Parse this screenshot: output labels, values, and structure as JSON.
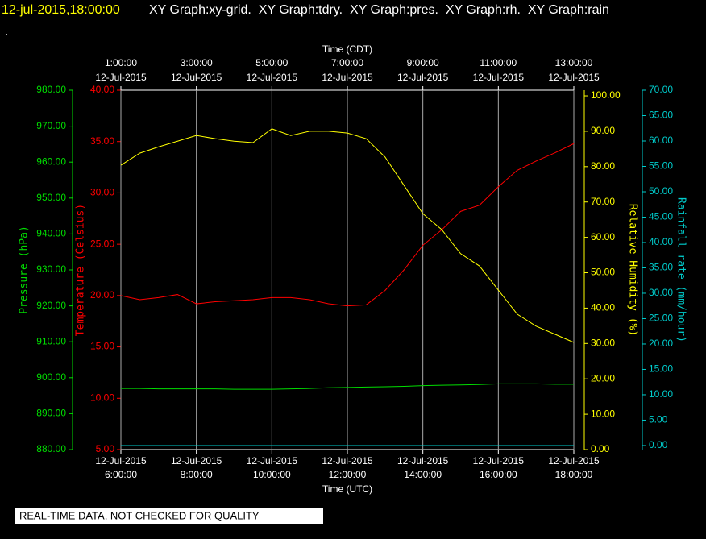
{
  "chart_data": {
    "type": "line",
    "header_time": "12-jul-2015,18:00:00",
    "header_text": "XY Graph:xy-grid.  XY Graph:tdry.  XY Graph:pres.  XY Graph:rh.  XY Graph:rain",
    "header_line2": ".",
    "footer": "REAL-TIME DATA, NOT CHECKED FOR QUALITY",
    "xlabel": "Time (UTC)",
    "x2label": "Time (CDT)",
    "ylabel": "Temperature (Celsius)",
    "y2label": "Relative Humidity (%)",
    "y3label": "Pressure (hPa)",
    "y4label": "Rainfall rate (mm/hour)",
    "grid": true,
    "x": [
      "2015-07-12T06:00:00",
      "2015-07-12T06:30:00",
      "2015-07-12T07:00:00",
      "2015-07-12T07:30:00",
      "2015-07-12T08:00:00",
      "2015-07-12T08:30:00",
      "2015-07-12T09:00:00",
      "2015-07-12T09:30:00",
      "2015-07-12T10:00:00",
      "2015-07-12T10:30:00",
      "2015-07-12T11:00:00",
      "2015-07-12T11:30:00",
      "2015-07-12T12:00:00",
      "2015-07-12T12:30:00",
      "2015-07-12T13:00:00",
      "2015-07-12T13:30:00",
      "2015-07-12T14:00:00",
      "2015-07-12T14:30:00",
      "2015-07-12T15:00:00",
      "2015-07-12T15:30:00",
      "2015-07-12T16:00:00",
      "2015-07-12T16:30:00",
      "2015-07-12T17:00:00",
      "2015-07-12T17:30:00",
      "2015-07-12T18:00:00"
    ],
    "xlim": [
      "2015-07-12T06:00:00",
      "2015-07-12T18:00:00"
    ],
    "xticks": [
      {
        "value": "2015-07-12T06:00:00",
        "label": [
          "12-Jul-2015",
          "6:00:00"
        ]
      },
      {
        "value": "2015-07-12T08:00:00",
        "label": [
          "12-Jul-2015",
          "8:00:00"
        ]
      },
      {
        "value": "2015-07-12T10:00:00",
        "label": [
          "12-Jul-2015",
          "10:00:00"
        ]
      },
      {
        "value": "2015-07-12T12:00:00",
        "label": [
          "12-Jul-2015",
          "12:00:00"
        ]
      },
      {
        "value": "2015-07-12T14:00:00",
        "label": [
          "12-Jul-2015",
          "14:00:00"
        ]
      },
      {
        "value": "2015-07-12T16:00:00",
        "label": [
          "12-Jul-2015",
          "16:00:00"
        ]
      },
      {
        "value": "2015-07-12T18:00:00",
        "label": [
          "12-Jul-2015",
          "18:00:00"
        ]
      }
    ],
    "x2ticks": [
      {
        "value": "2015-07-12T06:00:00",
        "label": [
          "1:00:00",
          "12-Jul-2015"
        ]
      },
      {
        "value": "2015-07-12T08:00:00",
        "label": [
          "3:00:00",
          "12-Jul-2015"
        ]
      },
      {
        "value": "2015-07-12T10:00:00",
        "label": [
          "5:00:00",
          "12-Jul-2015"
        ]
      },
      {
        "value": "2015-07-12T12:00:00",
        "label": [
          "7:00:00",
          "12-Jul-2015"
        ]
      },
      {
        "value": "2015-07-12T14:00:00",
        "label": [
          "9:00:00",
          "12-Jul-2015"
        ]
      },
      {
        "value": "2015-07-12T16:00:00",
        "label": [
          "11:00:00",
          "12-Jul-2015"
        ]
      },
      {
        "value": "2015-07-12T18:00:00",
        "label": [
          "13:00:00",
          "12-Jul-2015"
        ]
      }
    ],
    "ylim": [
      5,
      40
    ],
    "yticks": [
      {
        "value": 5,
        "label": "5.00"
      },
      {
        "value": 10,
        "label": "10.00"
      },
      {
        "value": 15,
        "label": "15.00"
      },
      {
        "value": 20,
        "label": "20.00"
      },
      {
        "value": 25,
        "label": "25.00"
      },
      {
        "value": 30,
        "label": "30.00"
      },
      {
        "value": 35,
        "label": "35.00"
      },
      {
        "value": 40,
        "label": "40.00"
      }
    ],
    "y2lim": [
      0,
      101.6
    ],
    "y2ticks": [
      {
        "value": 0,
        "label": "0.00"
      },
      {
        "value": 10,
        "label": "10.00"
      },
      {
        "value": 20,
        "label": "20.00"
      },
      {
        "value": 30,
        "label": "30.00"
      },
      {
        "value": 40,
        "label": "40.00"
      },
      {
        "value": 50,
        "label": "50.00"
      },
      {
        "value": 60,
        "label": "60.00"
      },
      {
        "value": 70,
        "label": "70.00"
      },
      {
        "value": 80,
        "label": "80.00"
      },
      {
        "value": 90,
        "label": "90.00"
      },
      {
        "value": 100,
        "label": "100.00"
      }
    ],
    "y3lim": [
      880,
      980
    ],
    "y3ticks": [
      {
        "value": 880,
        "label": "880.00"
      },
      {
        "value": 890,
        "label": "890.00"
      },
      {
        "value": 900,
        "label": "900.00"
      },
      {
        "value": 910,
        "label": "910.00"
      },
      {
        "value": 920,
        "label": "920.00"
      },
      {
        "value": 930,
        "label": "930.00"
      },
      {
        "value": 940,
        "label": "940.00"
      },
      {
        "value": 950,
        "label": "950.00"
      },
      {
        "value": 960,
        "label": "960.00"
      },
      {
        "value": 970,
        "label": "970.00"
      },
      {
        "value": 980,
        "label": "980.00"
      }
    ],
    "y4lim": [
      -0.8,
      70
    ],
    "y4ticks": [
      {
        "value": 0,
        "label": "0.00"
      },
      {
        "value": 5,
        "label": "5.00"
      },
      {
        "value": 10,
        "label": "10.00"
      },
      {
        "value": 15,
        "label": "15.00"
      },
      {
        "value": 20,
        "label": "20.00"
      },
      {
        "value": 25,
        "label": "25.00"
      },
      {
        "value": 30,
        "label": "30.00"
      },
      {
        "value": 35,
        "label": "35.00"
      },
      {
        "value": 40,
        "label": "40.00"
      },
      {
        "value": 45,
        "label": "45.00"
      },
      {
        "value": 50,
        "label": "50.00"
      },
      {
        "value": 55,
        "label": "55.00"
      },
      {
        "value": 60,
        "label": "60.00"
      },
      {
        "value": 65,
        "label": "65.00"
      },
      {
        "value": 70,
        "label": "70.00"
      }
    ],
    "series": [
      {
        "axis": "y",
        "color": "#ff0000",
        "values": [
          20.0,
          19.6,
          19.8,
          20.1,
          19.2,
          19.4,
          19.5,
          19.6,
          19.8,
          19.8,
          19.6,
          19.2,
          19.0,
          19.1,
          20.5,
          22.5,
          24.9,
          26.4,
          28.2,
          28.8,
          30.6,
          32.2,
          33.1,
          33.9,
          34.8
        ]
      },
      {
        "axis": "y2",
        "color": "#ffff00",
        "values": [
          80.4,
          83.8,
          85.6,
          87.2,
          88.8,
          87.9,
          87.2,
          86.8,
          90.7,
          88.8,
          90.0,
          90.0,
          89.5,
          87.9,
          82.7,
          74.7,
          66.7,
          62.2,
          55.4,
          51.9,
          45.1,
          38.3,
          34.9,
          32.6,
          30.3
        ]
      },
      {
        "axis": "y3",
        "color": "#00dd00",
        "values": [
          897.0,
          897.0,
          896.9,
          896.9,
          896.9,
          896.9,
          896.8,
          896.8,
          896.8,
          896.9,
          897.0,
          897.2,
          897.3,
          897.4,
          897.5,
          897.6,
          897.8,
          897.9,
          898.0,
          898.1,
          898.3,
          898.3,
          898.3,
          898.2,
          898.2
        ]
      },
      {
        "axis": "y4",
        "color": "#00cccc",
        "values": [
          0,
          0,
          0,
          0,
          0,
          0,
          0,
          0,
          0,
          0,
          0,
          0,
          0,
          0,
          0,
          0,
          0,
          0,
          0,
          0,
          0,
          0,
          0,
          0,
          0
        ]
      }
    ]
  }
}
